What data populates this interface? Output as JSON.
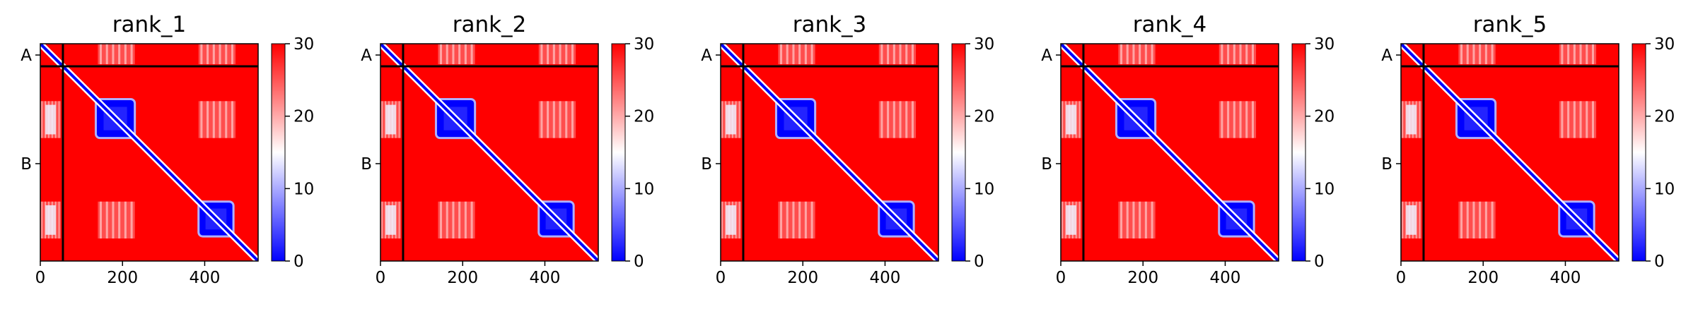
{
  "chart_data": {
    "type": "heatmap",
    "description_free": true,
    "panels": [
      {
        "title": "rank_1"
      },
      {
        "title": "rank_2"
      },
      {
        "title": "rank_3"
      },
      {
        "title": "rank_4"
      },
      {
        "title": "rank_5"
      }
    ],
    "matrix_size": 530,
    "chains": [
      {
        "label": "A",
        "start": 0,
        "end": 55
      },
      {
        "label": "B",
        "start": 55,
        "end": 530
      }
    ],
    "x_ticks": [
      0,
      200,
      400
    ],
    "colorbar": {
      "min": 0,
      "max": 30,
      "ticks": [
        0,
        10,
        20,
        30
      ],
      "colors": [
        "#0000ff",
        "#ffffff",
        "#ff0000"
      ]
    },
    "blue_blocks": [
      {
        "start": 135,
        "end": 230
      },
      {
        "start": 385,
        "end": 470
      }
    ],
    "light_regions": [
      {
        "rows": [
          140,
          230
        ],
        "cols": [
          0,
          50
        ]
      },
      {
        "rows": [
          385,
          475
        ],
        "cols": [
          0,
          50
        ]
      },
      {
        "rows": [
          0,
          50
        ],
        "cols": [
          140,
          230
        ]
      },
      {
        "rows": [
          0,
          50
        ],
        "cols": [
          385,
          475
        ]
      },
      {
        "rows": [
          140,
          230
        ],
        "cols": [
          385,
          475
        ]
      },
      {
        "rows": [
          385,
          475
        ],
        "cols": [
          140,
          230
        ]
      }
    ],
    "colors": {
      "high": "#ff0000",
      "mid": "#ffffff",
      "low": "#0000ff",
      "chain_line": "#000000"
    }
  }
}
